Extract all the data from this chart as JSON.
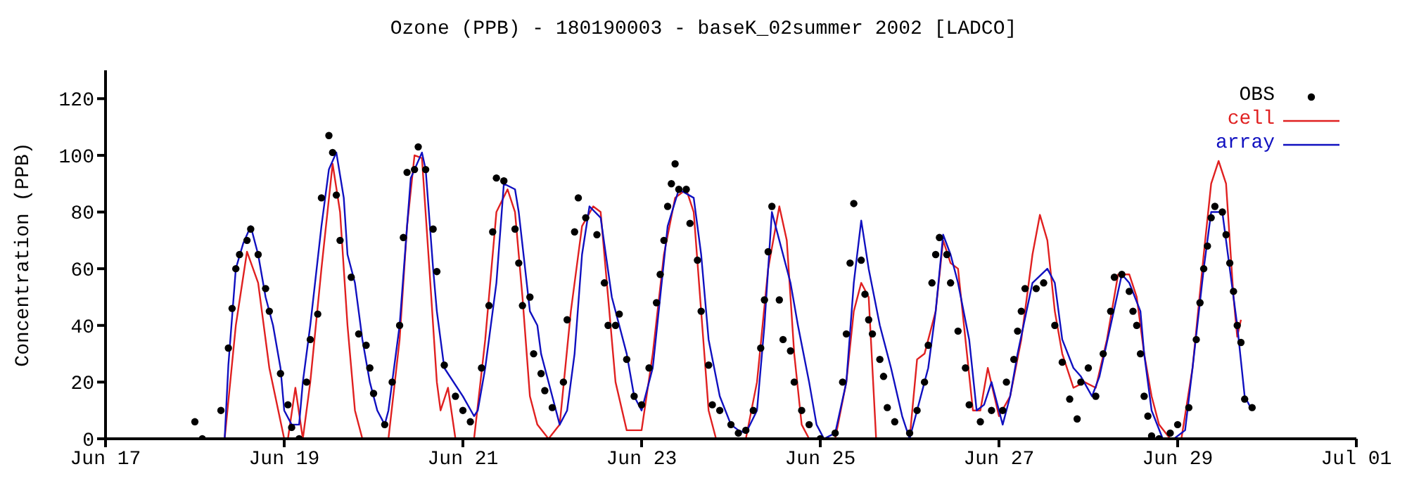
{
  "chart_data": {
    "type": "line",
    "title": "Ozone (PPB) - 180190003 - baseK_02summer 2002 [LADCO]",
    "ylabel": "Concentration (PPB)",
    "xlim": [
      "2002-06-17",
      "2002-07-01"
    ],
    "xticks": [
      {
        "value": "2002-06-17",
        "label": "Jun 17"
      },
      {
        "value": "2002-06-19",
        "label": "Jun 19"
      },
      {
        "value": "2002-06-21",
        "label": "Jun 21"
      },
      {
        "value": "2002-06-23",
        "label": "Jun 23"
      },
      {
        "value": "2002-06-25",
        "label": "Jun 25"
      },
      {
        "value": "2002-06-27",
        "label": "Jun 27"
      },
      {
        "value": "2002-06-29",
        "label": "Jun 29"
      },
      {
        "value": "2002-07-01",
        "label": "Jul 01"
      }
    ],
    "ylim": [
      0,
      130
    ],
    "yticks": [
      0,
      20,
      40,
      60,
      80,
      100,
      120
    ],
    "grid": false,
    "legend": "top right",
    "series": [
      {
        "name": "OBS",
        "type": "scatter",
        "marker": "circle",
        "color": "#000000",
        "x": [
          "2002-06-18T00:00",
          "2002-06-18T02:00",
          "2002-06-18T07:00",
          "2002-06-18T09:00",
          "2002-06-18T10:00",
          "2002-06-18T11:00",
          "2002-06-18T12:00",
          "2002-06-18T14:00",
          "2002-06-18T15:00",
          "2002-06-18T17:00",
          "2002-06-18T19:00",
          "2002-06-18T20:00",
          "2002-06-18T23:00",
          "2002-06-19T01:00",
          "2002-06-19T02:00",
          "2002-06-19T04:00",
          "2002-06-19T06:00",
          "2002-06-19T07:00",
          "2002-06-19T09:00",
          "2002-06-19T10:00",
          "2002-06-19T12:00",
          "2002-06-19T13:00",
          "2002-06-19T14:00",
          "2002-06-19T15:00",
          "2002-06-19T18:00",
          "2002-06-19T20:00",
          "2002-06-19T22:00",
          "2002-06-19T23:00",
          "2002-06-20T00:00",
          "2002-06-20T03:00",
          "2002-06-20T05:00",
          "2002-06-20T07:00",
          "2002-06-20T08:00",
          "2002-06-20T09:00",
          "2002-06-20T11:00",
          "2002-06-20T12:00",
          "2002-06-20T14:00",
          "2002-06-20T16:00",
          "2002-06-20T17:00",
          "2002-06-20T19:00",
          "2002-06-20T22:00",
          "2002-06-21T00:00",
          "2002-06-21T02:00",
          "2002-06-21T05:00",
          "2002-06-21T07:00",
          "2002-06-21T08:00",
          "2002-06-21T09:00",
          "2002-06-21T11:00",
          "2002-06-21T14:00",
          "2002-06-21T15:00",
          "2002-06-21T16:00",
          "2002-06-21T18:00",
          "2002-06-21T19:00",
          "2002-06-21T21:00",
          "2002-06-21T22:00",
          "2002-06-22T00:00",
          "2002-06-22T03:00",
          "2002-06-22T04:00",
          "2002-06-22T06:00",
          "2002-06-22T07:00",
          "2002-06-22T09:00",
          "2002-06-22T12:00",
          "2002-06-22T14:00",
          "2002-06-22T15:00",
          "2002-06-22T17:00",
          "2002-06-22T18:00",
          "2002-06-22T20:00",
          "2002-06-22T22:00",
          "2002-06-23T00:00",
          "2002-06-23T02:00",
          "2002-06-23T04:00",
          "2002-06-23T05:00",
          "2002-06-23T06:00",
          "2002-06-23T07:00",
          "2002-06-23T08:00",
          "2002-06-23T09:00",
          "2002-06-23T10:00",
          "2002-06-23T12:00",
          "2002-06-23T13:00",
          "2002-06-23T15:00",
          "2002-06-23T16:00",
          "2002-06-23T18:00",
          "2002-06-23T19:00",
          "2002-06-23T21:00",
          "2002-06-24T00:00",
          "2002-06-24T02:00",
          "2002-06-24T04:00",
          "2002-06-24T06:00",
          "2002-06-24T08:00",
          "2002-06-24T09:00",
          "2002-06-24T10:00",
          "2002-06-24T11:00",
          "2002-06-24T13:00",
          "2002-06-24T14:00",
          "2002-06-24T16:00",
          "2002-06-24T17:00",
          "2002-06-24T19:00",
          "2002-06-24T21:00",
          "2002-06-25T00:00",
          "2002-06-25T04:00",
          "2002-06-25T06:00",
          "2002-06-25T07:00",
          "2002-06-25T08:00",
          "2002-06-25T09:00",
          "2002-06-25T11:00",
          "2002-06-25T12:00",
          "2002-06-25T13:00",
          "2002-06-25T14:00",
          "2002-06-25T16:00",
          "2002-06-25T17:00",
          "2002-06-25T18:00",
          "2002-06-25T20:00",
          "2002-06-26T00:00",
          "2002-06-26T02:00",
          "2002-06-26T04:00",
          "2002-06-26T05:00",
          "2002-06-26T06:00",
          "2002-06-26T07:00",
          "2002-06-26T08:00",
          "2002-06-26T10:00",
          "2002-06-26T11:00",
          "2002-06-26T13:00",
          "2002-06-26T15:00",
          "2002-06-26T16:00",
          "2002-06-26T19:00",
          "2002-06-26T22:00",
          "2002-06-27T01:00",
          "2002-06-27T02:00",
          "2002-06-27T04:00",
          "2002-06-27T05:00",
          "2002-06-27T06:00",
          "2002-06-27T07:00",
          "2002-06-27T10:00",
          "2002-06-27T12:00",
          "2002-06-27T15:00",
          "2002-06-27T17:00",
          "2002-06-27T19:00",
          "2002-06-27T21:00",
          "2002-06-27T22:00",
          "2002-06-28T00:00",
          "2002-06-28T02:00",
          "2002-06-28T04:00",
          "2002-06-28T06:00",
          "2002-06-28T07:00",
          "2002-06-28T09:00",
          "2002-06-28T11:00",
          "2002-06-28T12:00",
          "2002-06-28T13:00",
          "2002-06-28T14:00",
          "2002-06-28T15:00",
          "2002-06-28T16:00",
          "2002-06-28T17:00",
          "2002-06-28T19:00",
          "2002-06-28T22:00",
          "2002-06-29T00:00",
          "2002-06-29T03:00",
          "2002-06-29T05:00",
          "2002-06-29T06:00",
          "2002-06-29T07:00",
          "2002-06-29T08:00",
          "2002-06-29T09:00",
          "2002-06-29T10:00",
          "2002-06-29T12:00",
          "2002-06-29T13:00",
          "2002-06-29T14:00",
          "2002-06-29T15:00",
          "2002-06-29T16:00",
          "2002-06-29T17:00",
          "2002-06-29T18:00",
          "2002-06-29T20:00"
        ],
        "values": [
          6,
          0,
          10,
          32,
          46,
          60,
          65,
          70,
          74,
          65,
          53,
          45,
          23,
          12,
          4,
          0,
          20,
          35,
          44,
          85,
          107,
          101,
          86,
          70,
          57,
          37,
          33,
          25,
          16,
          5,
          20,
          40,
          71,
          94,
          95,
          103,
          95,
          74,
          59,
          26,
          15,
          10,
          6,
          25,
          47,
          73,
          92,
          91,
          74,
          62,
          47,
          50,
          30,
          23,
          17,
          11,
          20,
          42,
          73,
          85,
          78,
          72,
          55,
          40,
          40,
          44,
          28,
          15,
          12,
          25,
          48,
          58,
          70,
          82,
          90,
          97,
          88,
          88,
          76,
          63,
          45,
          26,
          12,
          10,
          5,
          2,
          3,
          10,
          32,
          49,
          66,
          82,
          49,
          35,
          31,
          20,
          10,
          5,
          0,
          2,
          20,
          37,
          62,
          83,
          63,
          51,
          42,
          37,
          28,
          22,
          11,
          6,
          2,
          10,
          20,
          33,
          55,
          65,
          71,
          65,
          55,
          38,
          25,
          12,
          6,
          10,
          10,
          20,
          28,
          38,
          45,
          53,
          53,
          55,
          40,
          27,
          14,
          7,
          20,
          25,
          15,
          30,
          45,
          57,
          58,
          52,
          45,
          40,
          30,
          15,
          8,
          1,
          0,
          2,
          5,
          11,
          35,
          48,
          60,
          68,
          78,
          82,
          80,
          72,
          62,
          52,
          40,
          34,
          14,
          11
        ]
      },
      {
        "name": "cell",
        "type": "line",
        "color": "#e02020",
        "x": [
          "2002-06-18T01:00",
          "2002-06-18T08:00",
          "2002-06-18T11:00",
          "2002-06-18T14:00",
          "2002-06-18T17:00",
          "2002-06-18T20:00",
          "2002-06-19T00:00",
          "2002-06-19T01:00",
          "2002-06-19T03:00",
          "2002-06-19T05:00",
          "2002-06-19T07:00",
          "2002-06-19T10:00",
          "2002-06-19T13:00",
          "2002-06-19T15:00",
          "2002-06-19T17:00",
          "2002-06-19T19:00",
          "2002-06-19T21:00",
          "2002-06-20T04:00",
          "2002-06-20T07:00",
          "2002-06-20T09:00",
          "2002-06-20T11:00",
          "2002-06-20T13:00",
          "2002-06-20T15:00",
          "2002-06-20T17:00",
          "2002-06-20T18:00",
          "2002-06-20T20:00",
          "2002-06-20T22:00",
          "2002-06-21T03:00",
          "2002-06-21T06:00",
          "2002-06-21T09:00",
          "2002-06-21T12:00",
          "2002-06-21T14:00",
          "2002-06-21T16:00",
          "2002-06-21T18:00",
          "2002-06-21T20:00",
          "2002-06-21T23:00",
          "2002-06-22T02:00",
          "2002-06-22T05:00",
          "2002-06-22T08:00",
          "2002-06-22T11:00",
          "2002-06-22T13:00",
          "2002-06-22T15:00",
          "2002-06-22T17:00",
          "2002-06-22T20:00",
          "2002-06-23T00:00",
          "2002-06-23T03:00",
          "2002-06-23T06:00",
          "2002-06-23T09:00",
          "2002-06-23T12:00",
          "2002-06-23T14:00",
          "2002-06-23T16:00",
          "2002-06-23T18:00",
          "2002-06-23T20:00",
          "2002-06-24T04:00",
          "2002-06-24T07:00",
          "2002-06-24T10:00",
          "2002-06-24T13:00",
          "2002-06-24T15:00",
          "2002-06-24T17:00",
          "2002-06-24T19:00",
          "2002-06-24T21:00",
          "2002-06-25T04:00",
          "2002-06-25T07:00",
          "2002-06-25T09:00",
          "2002-06-25T11:00",
          "2002-06-25T13:00",
          "2002-06-25T14:00",
          "2002-06-25T15:00",
          "2002-06-26T00:00",
          "2002-06-26T02:00",
          "2002-06-26T04:00",
          "2002-06-26T07:00",
          "2002-06-26T09:00",
          "2002-06-26T11:00",
          "2002-06-26T13:00",
          "2002-06-26T15:00",
          "2002-06-26T17:00",
          "2002-06-26T19:00",
          "2002-06-26T21:00",
          "2002-06-27T00:00",
          "2002-06-27T03:00",
          "2002-06-27T06:00",
          "2002-06-27T09:00",
          "2002-06-27T11:00",
          "2002-06-27T13:00",
          "2002-06-27T15:00",
          "2002-06-27T17:00",
          "2002-06-27T20:00",
          "2002-06-27T23:00",
          "2002-06-28T02:00",
          "2002-06-28T05:00",
          "2002-06-28T08:00",
          "2002-06-28T11:00",
          "2002-06-28T13:00",
          "2002-06-28T15:00",
          "2002-06-28T17:00",
          "2002-06-28T19:00",
          "2002-06-28T22:00",
          "2002-06-29T01:00",
          "2002-06-29T04:00",
          "2002-06-29T07:00",
          "2002-06-29T09:00",
          "2002-06-29T11:00",
          "2002-06-29T13:00",
          "2002-06-29T15:00",
          "2002-06-29T16:00",
          "2002-06-29T17:00"
        ],
        "values": [
          0,
          0,
          40,
          66,
          55,
          25,
          0,
          0,
          18,
          0,
          20,
          60,
          97,
          80,
          40,
          10,
          0,
          0,
          35,
          75,
          100,
          99,
          60,
          20,
          10,
          18,
          0,
          0,
          35,
          80,
          88,
          80,
          50,
          15,
          5,
          0,
          5,
          45,
          75,
          82,
          80,
          50,
          20,
          3,
          3,
          30,
          65,
          85,
          88,
          80,
          45,
          10,
          0,
          0,
          20,
          60,
          82,
          70,
          30,
          5,
          0,
          0,
          20,
          45,
          55,
          50,
          25,
          0,
          0,
          28,
          30,
          45,
          70,
          62,
          60,
          35,
          10,
          10,
          25,
          8,
          15,
          35,
          65,
          79,
          70,
          45,
          30,
          18,
          20,
          18,
          35,
          58,
          58,
          50,
          30,
          15,
          5,
          0,
          0,
          25,
          65,
          90,
          98,
          90,
          50,
          36,
          42
        ]
      },
      {
        "name": "array",
        "type": "line",
        "color": "#1010c0",
        "x": [
          "2002-06-18T01:00",
          "2002-06-18T08:00",
          "2002-06-18T09:00",
          "2002-06-18T11:00",
          "2002-06-18T13:00",
          "2002-06-18T15:00",
          "2002-06-18T17:00",
          "2002-06-18T19:00",
          "2002-06-18T21:00",
          "2002-06-18T23:00",
          "2002-06-19T00:00",
          "2002-06-19T02:00",
          "2002-06-19T04:00",
          "2002-06-19T05:00",
          "2002-06-19T07:00",
          "2002-06-19T10:00",
          "2002-06-19T12:00",
          "2002-06-19T14:00",
          "2002-06-19T16:00",
          "2002-06-19T17:00",
          "2002-06-19T19:00",
          "2002-06-19T21:00",
          "2002-06-19T23:00",
          "2002-06-20T01:00",
          "2002-06-20T03:00",
          "2002-06-20T04:00",
          "2002-06-20T07:00",
          "2002-06-20T09:00",
          "2002-06-20T10:00",
          "2002-06-20T13:00",
          "2002-06-20T14:00",
          "2002-06-20T16:00",
          "2002-06-20T17:00",
          "2002-06-20T19:00",
          "2002-06-21T00:00",
          "2002-06-21T03:00",
          "2002-06-21T04:00",
          "2002-06-21T06:00",
          "2002-06-21T09:00",
          "2002-06-21T11:00",
          "2002-06-21T14:00",
          "2002-06-21T15:00",
          "2002-06-21T18:00",
          "2002-06-21T20:00",
          "2002-06-21T21:00",
          "2002-06-22T00:00",
          "2002-06-22T02:00",
          "2002-06-22T04:00",
          "2002-06-22T06:00",
          "2002-06-22T08:00",
          "2002-06-22T10:00",
          "2002-06-22T13:00",
          "2002-06-22T16:00",
          "2002-06-22T18:00",
          "2002-06-22T20:00",
          "2002-06-22T22:00",
          "2002-06-23T00:00",
          "2002-06-23T03:00",
          "2002-06-23T05:00",
          "2002-06-23T07:00",
          "2002-06-23T10:00",
          "2002-06-23T14:00",
          "2002-06-23T16:00",
          "2002-06-23T18:00",
          "2002-06-23T21:00",
          "2002-06-24T00:00",
          "2002-06-24T02:00",
          "2002-06-24T04:00",
          "2002-06-24T07:00",
          "2002-06-24T09:00",
          "2002-06-24T11:00",
          "2002-06-24T13:00",
          "2002-06-24T16:00",
          "2002-06-24T18:00",
          "2002-06-24T21:00",
          "2002-06-24T23:00",
          "2002-06-25T01:00",
          "2002-06-25T04:00",
          "2002-06-25T07:00",
          "2002-06-25T09:00",
          "2002-06-25T11:00",
          "2002-06-25T13:00",
          "2002-06-25T16:00",
          "2002-06-25T19:00",
          "2002-06-25T22:00",
          "2002-06-26T00:00",
          "2002-06-26T02:00",
          "2002-06-26T04:00",
          "2002-06-26T05:00",
          "2002-06-26T07:00",
          "2002-06-26T09:00",
          "2002-06-26T11:00",
          "2002-06-26T13:00",
          "2002-06-26T16:00",
          "2002-06-26T18:00",
          "2002-06-26T20:00",
          "2002-06-26T22:00",
          "2002-06-27T01:00",
          "2002-06-27T03:00",
          "2002-06-27T05:00",
          "2002-06-27T09:00",
          "2002-06-27T13:00",
          "2002-06-27T15:00",
          "2002-06-27T17:00",
          "2002-06-27T20:00",
          "2002-06-27T22:00",
          "2002-06-28T01:00",
          "2002-06-28T03:00",
          "2002-06-28T06:00",
          "2002-06-28T09:00",
          "2002-06-28T11:00",
          "2002-06-28T14:00",
          "2002-06-28T15:00",
          "2002-06-28T17:00",
          "2002-06-28T20:00",
          "2002-06-28T23:00",
          "2002-06-29T02:00",
          "2002-06-29T04:00",
          "2002-06-29T07:00",
          "2002-06-29T09:00",
          "2002-06-29T12:00",
          "2002-06-29T14:00",
          "2002-06-29T16:00",
          "2002-06-29T18:00",
          "2002-06-29T20:00"
        ],
        "values": [
          0,
          0,
          26,
          60,
          69,
          75,
          65,
          50,
          40,
          25,
          10,
          5,
          5,
          20,
          40,
          75,
          95,
          101,
          85,
          65,
          55,
          35,
          20,
          10,
          5,
          10,
          40,
          75,
          92,
          101,
          95,
          60,
          45,
          25,
          15,
          8,
          10,
          25,
          55,
          90,
          88,
          80,
          45,
          40,
          30,
          15,
          5,
          10,
          30,
          65,
          82,
          78,
          50,
          40,
          30,
          15,
          10,
          25,
          50,
          75,
          88,
          85,
          65,
          35,
          15,
          5,
          3,
          2,
          10,
          40,
          80,
          70,
          55,
          40,
          20,
          5,
          0,
          2,
          20,
          55,
          77,
          60,
          40,
          25,
          8,
          0,
          10,
          20,
          25,
          45,
          72,
          65,
          55,
          35,
          10,
          12,
          20,
          5,
          15,
          30,
          55,
          60,
          55,
          35,
          25,
          22,
          15,
          22,
          40,
          58,
          55,
          45,
          30,
          10,
          0,
          0,
          3,
          25,
          60,
          80,
          80,
          60,
          40,
          15,
          10
        ]
      }
    ]
  }
}
